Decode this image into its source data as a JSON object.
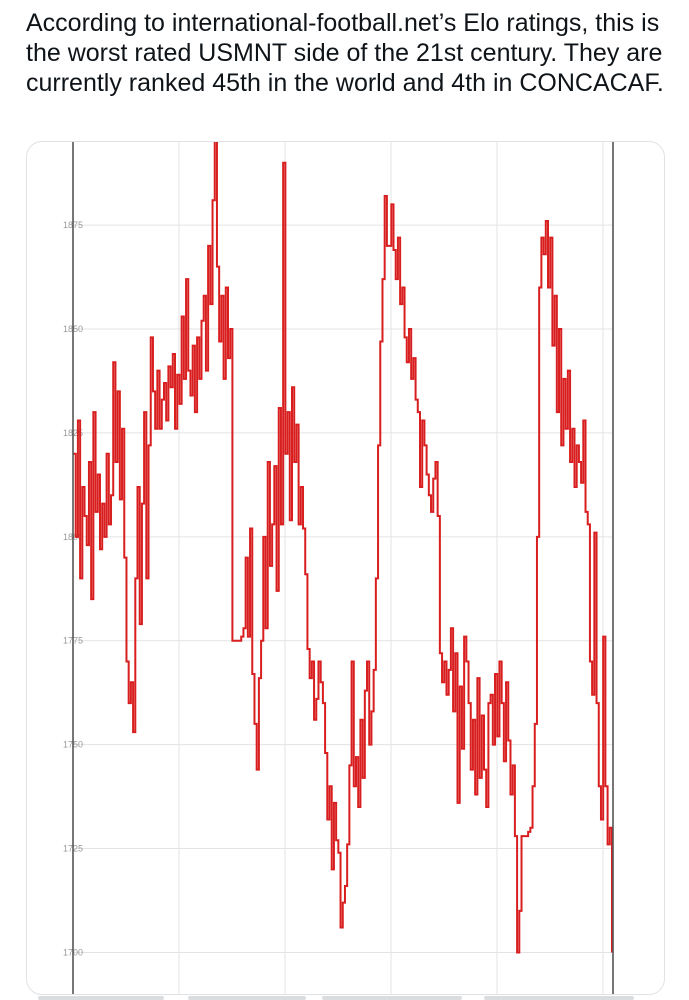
{
  "post": {
    "text": "According to international-football.net’s Elo ratings, this is the worst rated USMNT side of the 21st century. They are currently ranked 45th in the world and 4th in CONCACAF."
  },
  "chart_data": {
    "type": "line",
    "title": "",
    "xlabel": "",
    "ylabel": "",
    "ylim": [
      1690,
      1895
    ],
    "grid": true,
    "yticks": [
      1875,
      1850,
      1825,
      1800,
      1775,
      1750,
      1725,
      1700
    ],
    "ytick_labels": [
      "1875",
      "1850",
      "1825",
      "1800",
      "1775",
      "1750",
      "1725",
      "1700"
    ],
    "line_color": "#d81e1e",
    "series": [
      {
        "values": [
          1820,
          1800,
          1828,
          1790,
          1812,
          1805,
          1798,
          1818,
          1785,
          1830,
          1806,
          1815,
          1797,
          1808,
          1800,
          1820,
          1803,
          1810,
          1842,
          1818,
          1835,
          1809,
          1826,
          1795,
          1770,
          1760,
          1765,
          1753,
          1790,
          1812,
          1779,
          1808,
          1830,
          1790,
          1822,
          1848,
          1835,
          1826,
          1840,
          1826,
          1833,
          1837,
          1828,
          1841,
          1836,
          1844,
          1826,
          1839,
          1832,
          1853,
          1838,
          1862,
          1840,
          1834,
          1846,
          1830,
          1848,
          1838,
          1852,
          1858,
          1840,
          1870,
          1856,
          1881,
          1897,
          1865,
          1847,
          1858,
          1838,
          1860,
          1843,
          1850,
          1775,
          1775,
          1775,
          1775,
          1776,
          1778,
          1795,
          1776,
          1802,
          1767,
          1755,
          1744,
          1766,
          1775,
          1800,
          1778,
          1818,
          1793,
          1803,
          1817,
          1787,
          1831,
          1803,
          1890,
          1820,
          1830,
          1804,
          1836,
          1818,
          1827,
          1803,
          1812,
          1802,
          1791,
          1773,
          1766,
          1770,
          1756,
          1761,
          1770,
          1765,
          1760,
          1748,
          1732,
          1740,
          1720,
          1736,
          1727,
          1724,
          1706,
          1712,
          1716,
          1726,
          1745,
          1770,
          1740,
          1747,
          1735,
          1756,
          1742,
          1763,
          1770,
          1750,
          1758,
          1768,
          1790,
          1822,
          1847,
          1862,
          1882,
          1870,
          1870,
          1880,
          1869,
          1862,
          1872,
          1856,
          1860,
          1848,
          1842,
          1850,
          1838,
          1843,
          1833,
          1830,
          1812,
          1828,
          1822,
          1815,
          1810,
          1806,
          1814,
          1818,
          1805,
          1772,
          1765,
          1770,
          1762,
          1768,
          1778,
          1758,
          1772,
          1736,
          1764,
          1749,
          1776,
          1770,
          1760,
          1744,
          1756,
          1738,
          1766,
          1742,
          1757,
          1744,
          1735,
          1760,
          1762,
          1750,
          1767,
          1752,
          1770,
          1760,
          1746,
          1765,
          1751,
          1738,
          1745,
          1728,
          1700,
          1710,
          1728,
          1728,
          1728,
          1729,
          1730,
          1740,
          1755,
          1800,
          1860,
          1872,
          1868,
          1876,
          1860,
          1872,
          1846,
          1858,
          1830,
          1850,
          1822,
          1838,
          1826,
          1840,
          1818,
          1826,
          1812,
          1822,
          1818,
          1813,
          1828,
          1806,
          1803,
          1770,
          1762,
          1801,
          1760,
          1740,
          1732,
          1776,
          1740,
          1726,
          1730,
          1700
        ]
      }
    ]
  }
}
